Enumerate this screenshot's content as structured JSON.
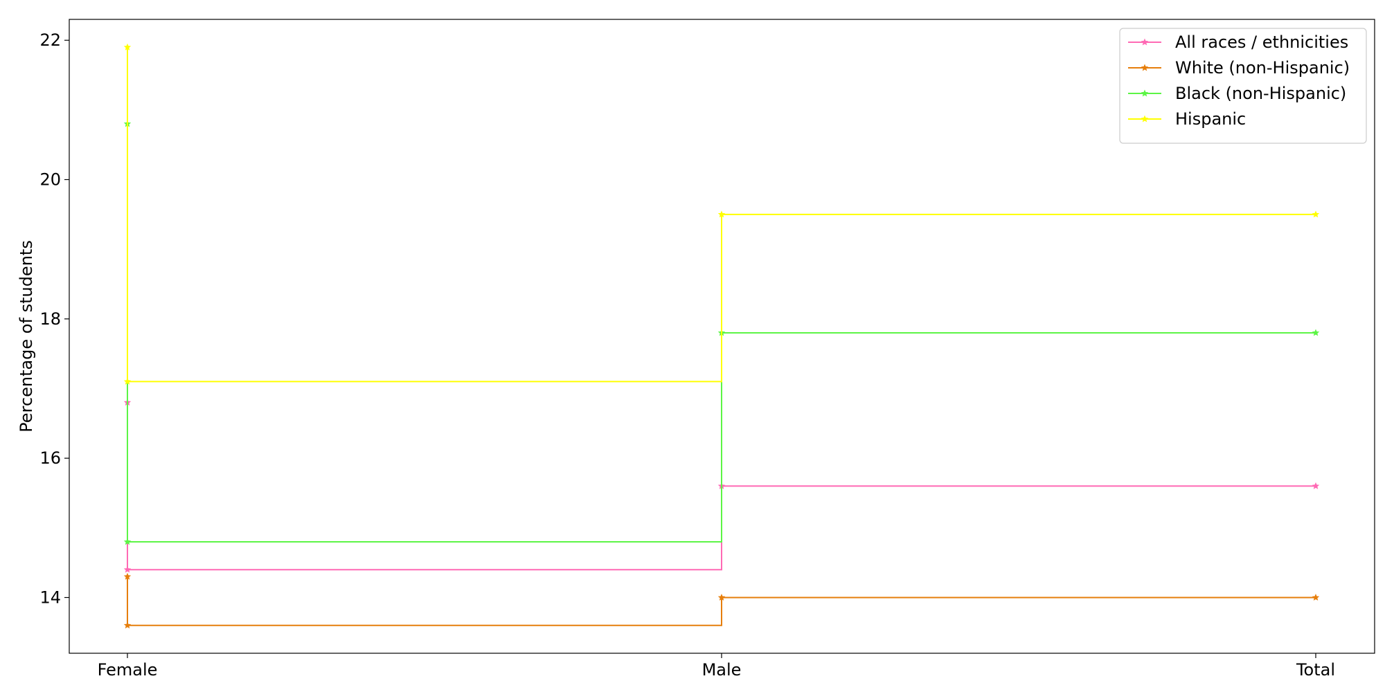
{
  "chart_data": {
    "type": "line",
    "step": "post",
    "categories": [
      "Female",
      "Male",
      "Total"
    ],
    "xlabel": "",
    "ylabel": "Percentage of students",
    "ylim": [
      13.2,
      22.3
    ],
    "yticks": [
      14,
      16,
      18,
      20,
      22
    ],
    "legend": "upper right",
    "grid": false,
    "series": [
      {
        "name": "All races / ethnicities",
        "color": "#ff69b4",
        "values": [
          14.4,
          15.6,
          15.6
        ],
        "extra_marker": 16.8
      },
      {
        "name": "White (non-Hispanic)",
        "color": "#e67e0b",
        "values": [
          13.6,
          14.0,
          14.0
        ],
        "extra_marker": 14.3
      },
      {
        "name": "Black (non-Hispanic)",
        "color": "#5cf545",
        "values": [
          14.8,
          17.8,
          17.8
        ],
        "extra_marker": 20.8
      },
      {
        "name": "Hispanic",
        "color": "#ffff00",
        "values": [
          17.1,
          19.5,
          19.5
        ],
        "extra_marker": 21.9
      }
    ]
  }
}
